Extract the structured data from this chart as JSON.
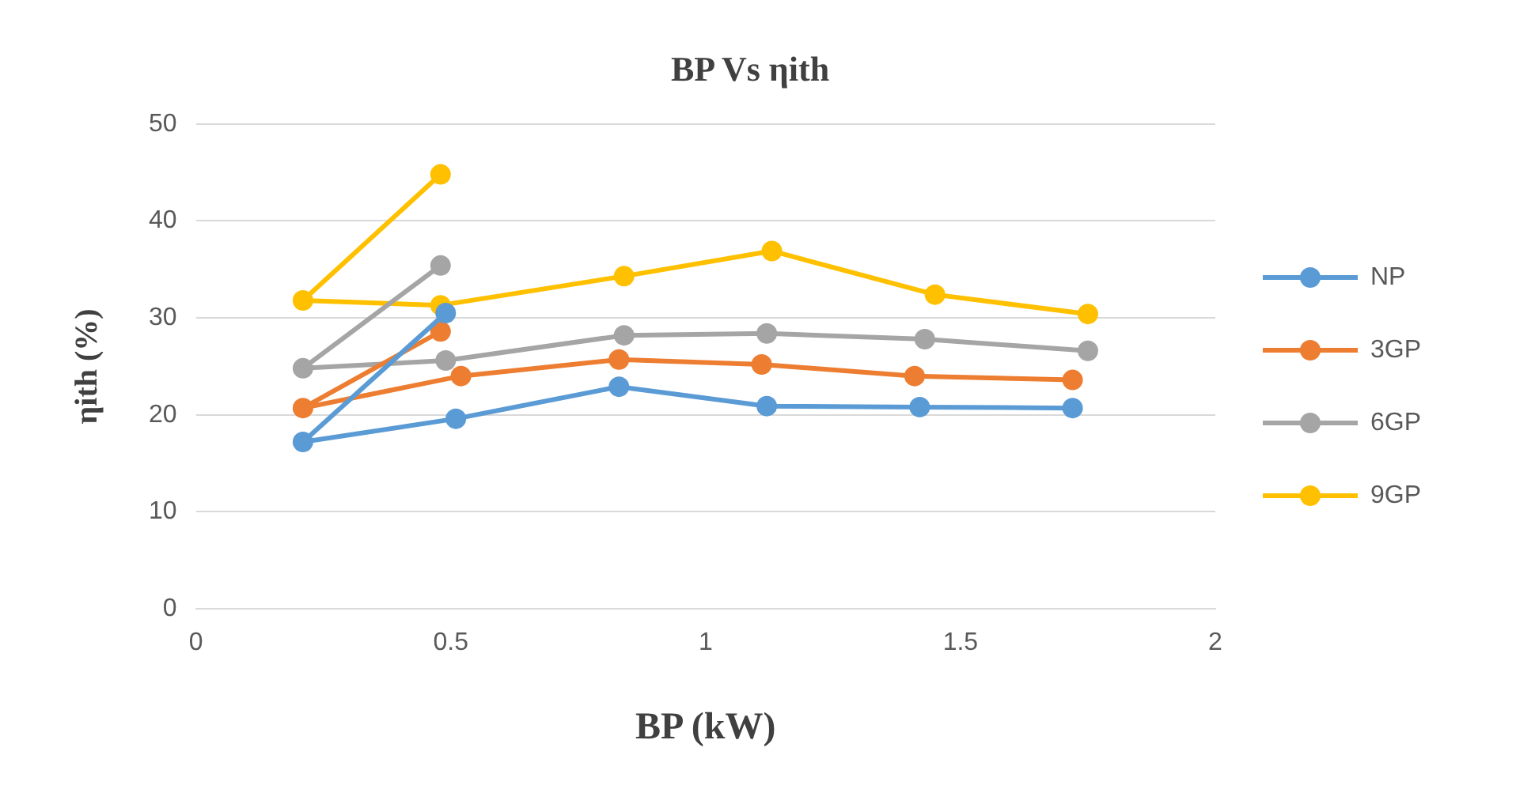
{
  "chart_data": {
    "type": "line",
    "title": "BP Vs ηith",
    "xlabel": "BP (kW)",
    "ylabel": "ηith (%)",
    "xlim": [
      0,
      2
    ],
    "xticks": [
      0,
      0.5,
      1,
      1.5,
      2
    ],
    "ylim": [
      0,
      50
    ],
    "yticks": [
      0,
      10,
      20,
      30,
      40,
      50
    ],
    "grid": "y",
    "legend": "right",
    "marker": "circle",
    "line_style": "solid",
    "series": [
      {
        "name": "NP",
        "color": "#5b9bd5",
        "x": [
          0.49,
          0.21,
          0.51,
          0.83,
          1.12,
          1.42,
          1.72
        ],
        "values": [
          30.5,
          17.2,
          19.6,
          22.9,
          20.9,
          20.8,
          20.7
        ]
      },
      {
        "name": "3GP",
        "color": "#ed7d31",
        "x": [
          0.48,
          0.21,
          0.52,
          0.83,
          1.11,
          1.41,
          1.72
        ],
        "values": [
          28.6,
          20.7,
          24.0,
          25.7,
          25.2,
          24.0,
          23.6
        ]
      },
      {
        "name": "6GP",
        "color": "#a5a5a5",
        "x": [
          0.48,
          0.21,
          0.49,
          0.84,
          1.12,
          1.43,
          1.75
        ],
        "values": [
          35.4,
          24.8,
          25.6,
          28.2,
          28.4,
          27.8,
          26.6
        ]
      },
      {
        "name": "9GP",
        "color": "#ffc000",
        "x": [
          0.48,
          0.21,
          0.48,
          0.84,
          1.13,
          1.45,
          1.75
        ],
        "values": [
          44.8,
          31.8,
          31.3,
          34.3,
          36.9,
          32.4,
          30.4
        ]
      }
    ]
  }
}
